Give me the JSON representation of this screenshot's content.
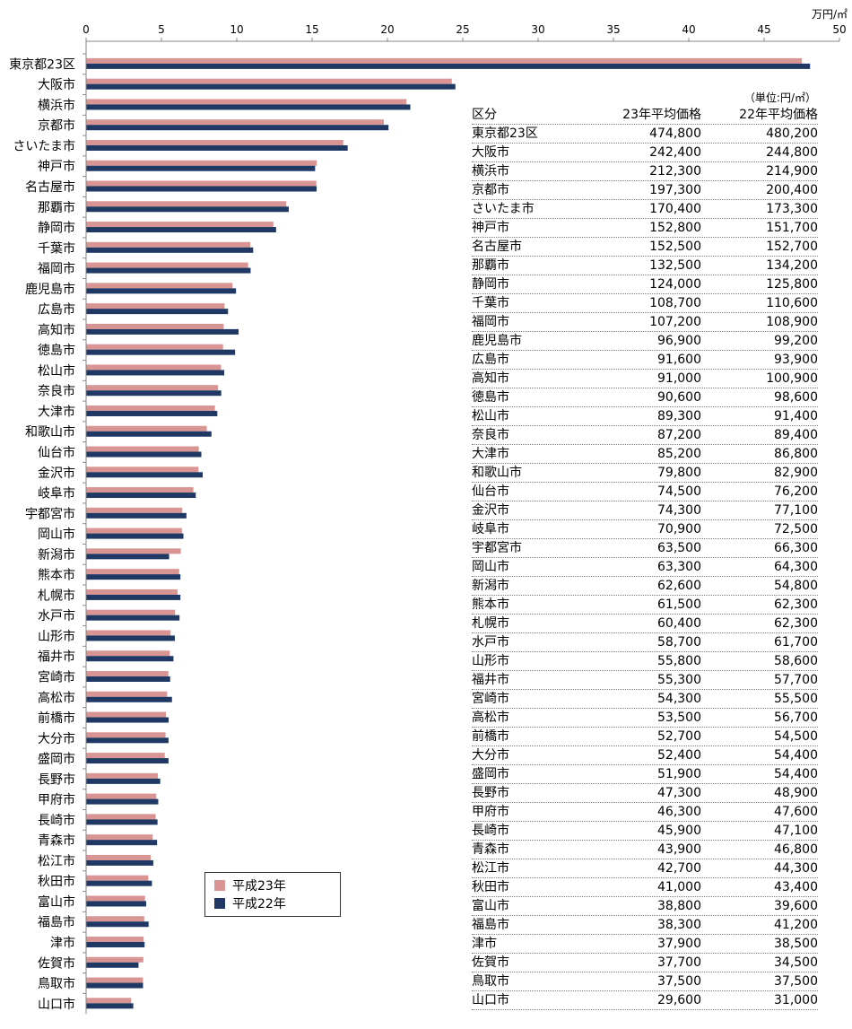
{
  "chart_data": {
    "type": "bar",
    "orientation": "horizontal",
    "unit_label": "万円/㎡",
    "xlim": [
      0,
      50
    ],
    "x_ticks": [
      "0",
      "5",
      "10",
      "15",
      "20",
      "25",
      "30",
      "35",
      "40",
      "45",
      "50"
    ],
    "categories": [
      "東京都23区",
      "大阪市",
      "横浜市",
      "京都市",
      "さいたま市",
      "神戸市",
      "名古屋市",
      "那覇市",
      "静岡市",
      "千葉市",
      "福岡市",
      "鹿児島市",
      "広島市",
      "高知市",
      "徳島市",
      "松山市",
      "奈良市",
      "大津市",
      "和歌山市",
      "仙台市",
      "金沢市",
      "岐阜市",
      "宇都宮市",
      "岡山市",
      "新潟市",
      "熊本市",
      "札幌市",
      "水戸市",
      "山形市",
      "福井市",
      "宮崎市",
      "高松市",
      "前橋市",
      "大分市",
      "盛岡市",
      "長野市",
      "甲府市",
      "長崎市",
      "青森市",
      "松江市",
      "秋田市",
      "富山市",
      "福島市",
      "津市",
      "佐賀市",
      "鳥取市",
      "山口市"
    ],
    "series": [
      {
        "name": "平成23年",
        "color": "#d99594",
        "values": [
          47.48,
          24.24,
          21.23,
          19.73,
          17.04,
          15.28,
          15.25,
          13.25,
          12.4,
          10.87,
          10.72,
          9.69,
          9.16,
          9.1,
          9.06,
          8.93,
          8.72,
          8.52,
          7.98,
          7.45,
          7.43,
          7.09,
          6.35,
          6.33,
          6.26,
          6.15,
          6.04,
          5.87,
          5.58,
          5.53,
          5.43,
          5.35,
          5.27,
          5.24,
          5.19,
          4.73,
          4.63,
          4.59,
          4.39,
          4.27,
          4.1,
          3.88,
          3.83,
          3.79,
          3.77,
          3.75,
          2.96
        ]
      },
      {
        "name": "平成22年",
        "color": "#1f3864",
        "values": [
          48.02,
          24.48,
          21.49,
          20.04,
          17.33,
          15.17,
          15.27,
          13.42,
          12.58,
          11.06,
          10.89,
          9.92,
          9.39,
          10.09,
          9.86,
          9.14,
          8.94,
          8.68,
          8.29,
          7.62,
          7.71,
          7.25,
          6.63,
          6.43,
          5.48,
          6.23,
          6.23,
          6.17,
          5.86,
          5.77,
          5.55,
          5.67,
          5.45,
          5.44,
          5.44,
          4.89,
          4.76,
          4.71,
          4.68,
          4.43,
          4.34,
          3.96,
          4.12,
          3.85,
          3.45,
          3.75,
          3.1
        ]
      }
    ],
    "legend_position": "bottom-center",
    "grid": false
  },
  "table": {
    "unit_note": "（単位:円/㎡）",
    "headers": [
      "区分",
      "23年平均価格",
      "22年平均価格"
    ],
    "rows": [
      [
        "東京都23区",
        "474,800",
        "480,200"
      ],
      [
        "大阪市",
        "242,400",
        "244,800"
      ],
      [
        "横浜市",
        "212,300",
        "214,900"
      ],
      [
        "京都市",
        "197,300",
        "200,400"
      ],
      [
        "さいたま市",
        "170,400",
        "173,300"
      ],
      [
        "神戸市",
        "152,800",
        "151,700"
      ],
      [
        "名古屋市",
        "152,500",
        "152,700"
      ],
      [
        "那覇市",
        "132,500",
        "134,200"
      ],
      [
        "静岡市",
        "124,000",
        "125,800"
      ],
      [
        "千葉市",
        "108,700",
        "110,600"
      ],
      [
        "福岡市",
        "107,200",
        "108,900"
      ],
      [
        "鹿児島市",
        "96,900",
        "99,200"
      ],
      [
        "広島市",
        "91,600",
        "93,900"
      ],
      [
        "高知市",
        "91,000",
        "100,900"
      ],
      [
        "徳島市",
        "90,600",
        "98,600"
      ],
      [
        "松山市",
        "89,300",
        "91,400"
      ],
      [
        "奈良市",
        "87,200",
        "89,400"
      ],
      [
        "大津市",
        "85,200",
        "86,800"
      ],
      [
        "和歌山市",
        "79,800",
        "82,900"
      ],
      [
        "仙台市",
        "74,500",
        "76,200"
      ],
      [
        "金沢市",
        "74,300",
        "77,100"
      ],
      [
        "岐阜市",
        "70,900",
        "72,500"
      ],
      [
        "宇都宮市",
        "63,500",
        "66,300"
      ],
      [
        "岡山市",
        "63,300",
        "64,300"
      ],
      [
        "新潟市",
        "62,600",
        "54,800"
      ],
      [
        "熊本市",
        "61,500",
        "62,300"
      ],
      [
        "札幌市",
        "60,400",
        "62,300"
      ],
      [
        "水戸市",
        "58,700",
        "61,700"
      ],
      [
        "山形市",
        "55,800",
        "58,600"
      ],
      [
        "福井市",
        "55,300",
        "57,700"
      ],
      [
        "宮崎市",
        "54,300",
        "55,500"
      ],
      [
        "高松市",
        "53,500",
        "56,700"
      ],
      [
        "前橋市",
        "52,700",
        "54,500"
      ],
      [
        "大分市",
        "52,400",
        "54,400"
      ],
      [
        "盛岡市",
        "51,900",
        "54,400"
      ],
      [
        "長野市",
        "47,300",
        "48,900"
      ],
      [
        "甲府市",
        "46,300",
        "47,600"
      ],
      [
        "長崎市",
        "45,900",
        "47,100"
      ],
      [
        "青森市",
        "43,900",
        "46,800"
      ],
      [
        "松江市",
        "42,700",
        "44,300"
      ],
      [
        "秋田市",
        "41,000",
        "43,400"
      ],
      [
        "富山市",
        "38,800",
        "39,600"
      ],
      [
        "福島市",
        "38,300",
        "41,200"
      ],
      [
        "津市",
        "37,900",
        "38,500"
      ],
      [
        "佐賀市",
        "37,700",
        "34,500"
      ],
      [
        "鳥取市",
        "37,500",
        "37,500"
      ],
      [
        "山口市",
        "29,600",
        "31,000"
      ]
    ]
  }
}
